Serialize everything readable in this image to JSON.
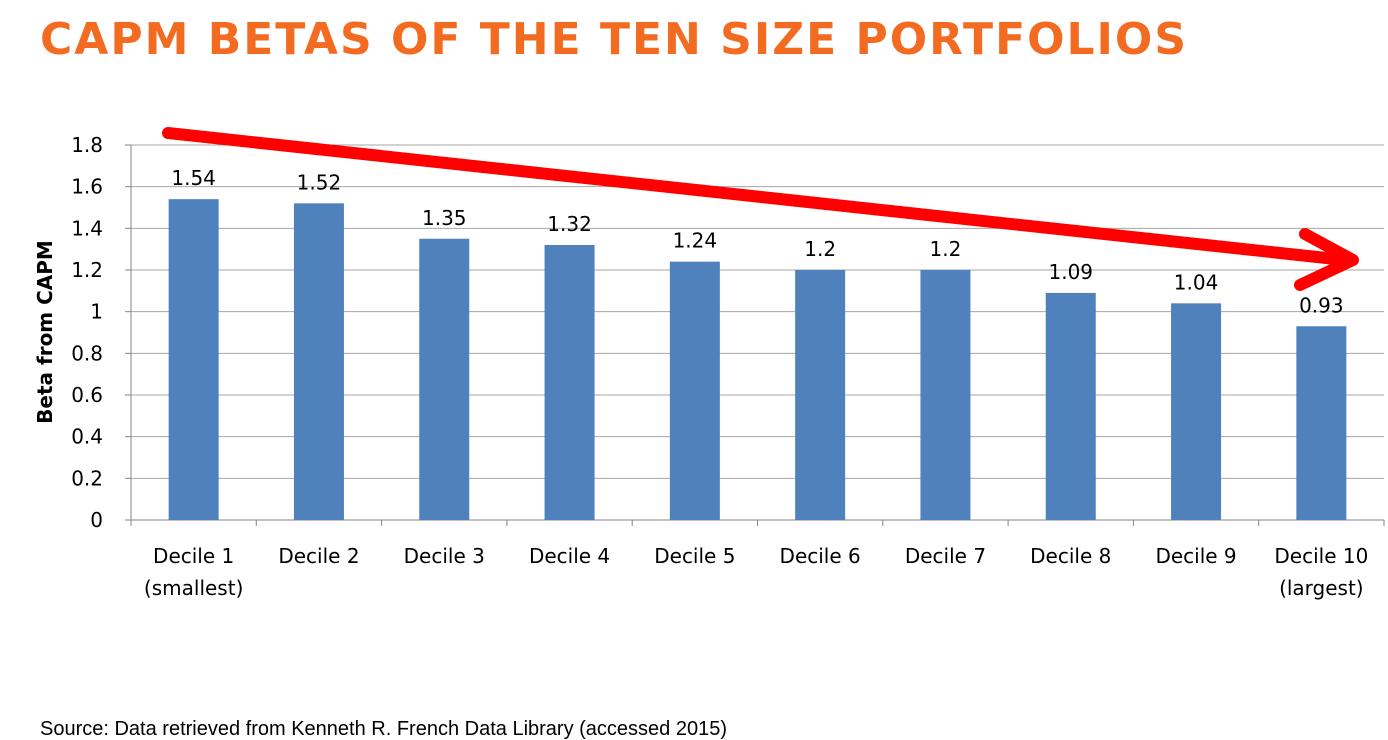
{
  "slide": {
    "title": "CAPM BETAS OF THE TEN SIZE PORTFOLIOS",
    "source": "Source: Data retrieved from Kenneth R. French Data Library (accessed 2015)"
  },
  "colors": {
    "title": "#f26b21",
    "bar": "#4f81bd",
    "trend_arrow": "#ff0000",
    "grid": "#a6a6a6"
  },
  "chart_data": {
    "type": "bar",
    "categories": [
      [
        "Decile 1",
        "(smallest)"
      ],
      [
        "Decile 2"
      ],
      [
        "Decile 3"
      ],
      [
        "Decile 4"
      ],
      [
        "Decile 5"
      ],
      [
        "Decile 6"
      ],
      [
        "Decile 7"
      ],
      [
        "Decile 8"
      ],
      [
        "Decile 9"
      ],
      [
        "Decile 10",
        "(largest)"
      ]
    ],
    "values": [
      1.54,
      1.52,
      1.35,
      1.32,
      1.24,
      1.2,
      1.2,
      1.09,
      1.04,
      0.93
    ],
    "data_labels": [
      "1.54",
      "1.52",
      "1.35",
      "1.32",
      "1.24",
      "1.2",
      "1.2",
      "1.09",
      "1.04",
      "0.93"
    ],
    "ylabel": "Beta from CAPM",
    "ylim": [
      0,
      1.8
    ],
    "yticks": [
      "0",
      "0.2",
      "0.4",
      "0.6",
      "0.8",
      "1",
      "1.2",
      "1.4",
      "1.6",
      "1.8"
    ],
    "grid": true,
    "legend": false,
    "annotation": "downward-trend-arrow"
  }
}
